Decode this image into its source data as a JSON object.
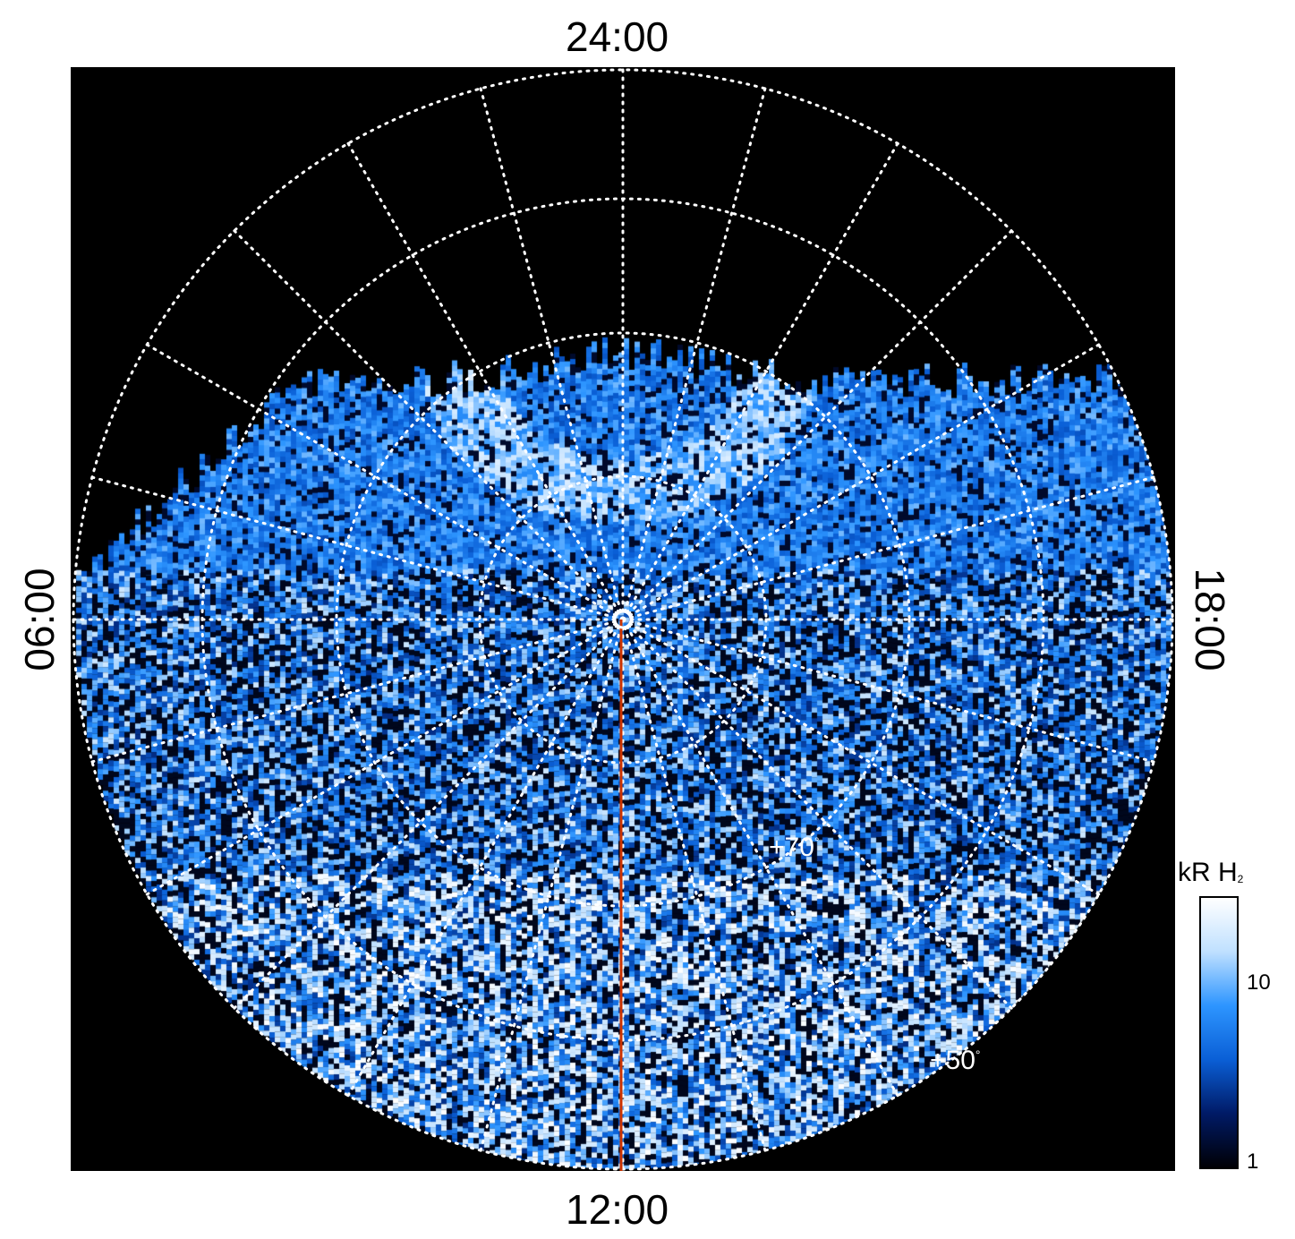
{
  "chart_data": {
    "type": "heatmap",
    "projection": "polar",
    "local_time_labels": {
      "top": "24:00",
      "bottom": "12:00",
      "left": "06:00",
      "right": "18:00"
    },
    "latitude_labels": [
      "+70",
      "+50"
    ],
    "degree_symbol": "°",
    "colorbar": {
      "title": "kR H",
      "title_subscript": "2",
      "scale": "log",
      "range": [
        1,
        30
      ],
      "ticks": [
        "10",
        "1"
      ],
      "colors": [
        "#000005",
        "#001a66",
        "#0a5fd6",
        "#2d95ff",
        "#bfe0ff",
        "#ffffff"
      ]
    },
    "grid": true,
    "colors": {
      "background": "#000000",
      "grid": "#ffffff",
      "meridian": "#cc3300"
    }
  }
}
